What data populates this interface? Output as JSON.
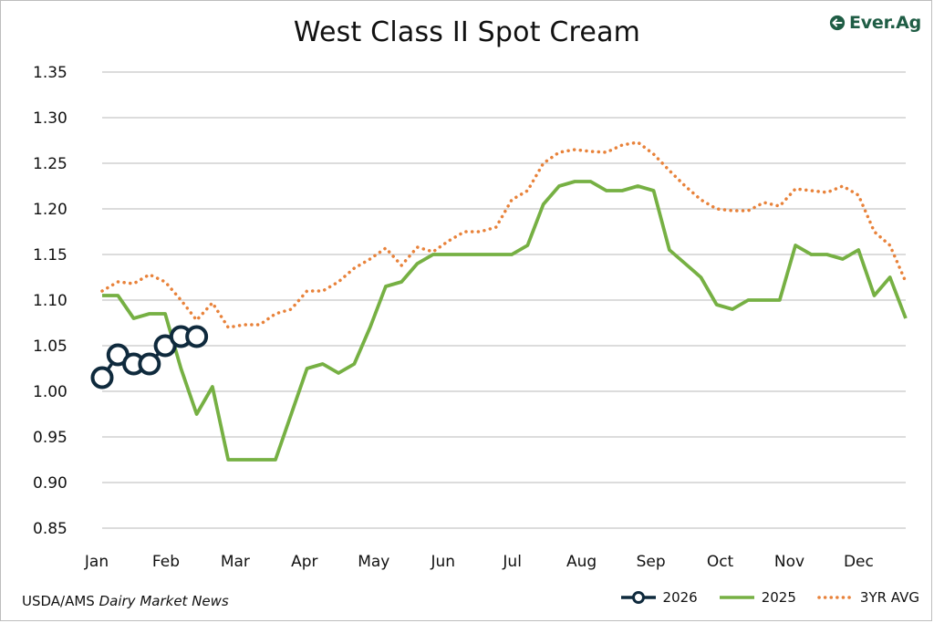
{
  "title": "West Class II Spot Cream",
  "brand": {
    "name": "Ever.Ag",
    "color": "#1f5d45",
    "icon": "everag-logo-icon"
  },
  "source": {
    "prefix": "USDA/AMS ",
    "publication": "Dairy Market News"
  },
  "chart_data": {
    "type": "line",
    "title": "West Class II Spot Cream",
    "xlabel": "",
    "ylabel": "",
    "ylim": [
      0.85,
      1.35
    ],
    "yticks": [
      "0.85",
      "0.90",
      "0.95",
      "1.00",
      "1.05",
      "1.10",
      "1.15",
      "1.20",
      "1.25",
      "1.30",
      "1.35"
    ],
    "month_labels": [
      "Jan",
      "Feb",
      "Mar",
      "Apr",
      "May",
      "Jun",
      "Jul",
      "Aug",
      "Sep",
      "Oct",
      "Nov",
      "Dec"
    ],
    "grid": "horizontal",
    "legend_position": "bottom-right",
    "series": [
      {
        "name": "2026",
        "style": "line-with-open-circles",
        "color": "#0f2a3d",
        "values": [
          1.015,
          1.04,
          1.03,
          1.03,
          1.05,
          1.06,
          1.06
        ]
      },
      {
        "name": "2025",
        "style": "solid",
        "color": "#76b043",
        "values": [
          1.105,
          1.105,
          1.08,
          1.085,
          1.085,
          1.025,
          0.975,
          1.005,
          0.925,
          0.925,
          0.925,
          0.925,
          0.975,
          1.025,
          1.03,
          1.02,
          1.03,
          1.07,
          1.115,
          1.12,
          1.14,
          1.15,
          1.15,
          1.15,
          1.15,
          1.15,
          1.15,
          1.16,
          1.205,
          1.225,
          1.23,
          1.23,
          1.22,
          1.22,
          1.225,
          1.22,
          1.155,
          1.14,
          1.125,
          1.095,
          1.09,
          1.1,
          1.1,
          1.1,
          1.16,
          1.15,
          1.15,
          1.145,
          1.155,
          1.105,
          1.125,
          1.08
        ]
      },
      {
        "name": "3YR AVG",
        "style": "dotted",
        "color": "#e8823a",
        "values": [
          1.11,
          1.12,
          1.118,
          1.128,
          1.12,
          1.1,
          1.078,
          1.097,
          1.07,
          1.073,
          1.073,
          1.085,
          1.09,
          1.11,
          1.11,
          1.12,
          1.135,
          1.145,
          1.157,
          1.138,
          1.158,
          1.153,
          1.165,
          1.175,
          1.175,
          1.18,
          1.21,
          1.22,
          1.25,
          1.262,
          1.265,
          1.263,
          1.262,
          1.27,
          1.273,
          1.26,
          1.242,
          1.225,
          1.21,
          1.2,
          1.198,
          1.198,
          1.207,
          1.203,
          1.222,
          1.22,
          1.218,
          1.225,
          1.215,
          1.175,
          1.16,
          1.12
        ]
      }
    ]
  }
}
